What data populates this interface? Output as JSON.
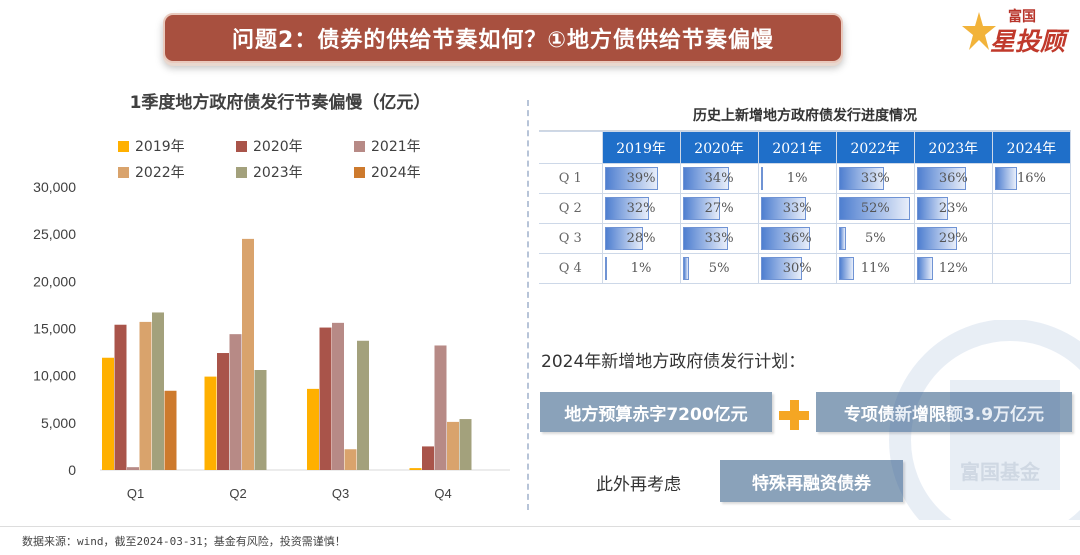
{
  "banner": {
    "title": "问题2：债券的供给节奏如何？①地方债供给节奏偏慢"
  },
  "logo": {
    "top": "富国",
    "main": "星投顾"
  },
  "chart_data": {
    "type": "bar",
    "title": "1季度地方政府债发行节奏偏慢（亿元）",
    "categories": [
      "Q1",
      "Q2",
      "Q3",
      "Q4"
    ],
    "ylim": [
      0,
      30000
    ],
    "yticks": [
      "30,000",
      "25,000",
      "20,000",
      "15,000",
      "10,000",
      "5,000",
      "0"
    ],
    "ytick_values": [
      30000,
      25000,
      20000,
      15000,
      10000,
      5000,
      0
    ],
    "legend_position": "top",
    "grid": false,
    "series": [
      {
        "name": "2019年",
        "color": "#ffb000",
        "values": [
          11900,
          9900,
          8600,
          200
        ]
      },
      {
        "name": "2020年",
        "color": "#a9544a",
        "values": [
          15400,
          12400,
          15100,
          2500
        ]
      },
      {
        "name": "2021年",
        "color": "#b78a86",
        "values": [
          300,
          14400,
          15600,
          13200
        ]
      },
      {
        "name": "2022年",
        "color": "#d9a36c",
        "values": [
          15700,
          24500,
          2200,
          5100
        ]
      },
      {
        "name": "2023年",
        "color": "#a3a17c",
        "values": [
          16700,
          10600,
          13700,
          5400
        ]
      },
      {
        "name": "2024年",
        "color": "#cd7a2d",
        "values": [
          8400,
          null,
          null,
          null
        ]
      }
    ]
  },
  "progress_table": {
    "title": "历史上新增地方政府债发行进度情况",
    "columns": [
      "2019年",
      "2020年",
      "2021年",
      "2022年",
      "2023年",
      "2024年"
    ],
    "rows": [
      {
        "label": "Q 1",
        "cells": [
          "39%",
          "34%",
          "1%",
          "33%",
          "36%",
          "16%"
        ],
        "values": [
          39,
          34,
          1,
          33,
          36,
          16
        ]
      },
      {
        "label": "Q 2",
        "cells": [
          "32%",
          "27%",
          "33%",
          "52%",
          "23%",
          ""
        ],
        "values": [
          32,
          27,
          33,
          52,
          23,
          null
        ]
      },
      {
        "label": "Q 3",
        "cells": [
          "28%",
          "33%",
          "36%",
          "5%",
          "29%",
          ""
        ],
        "values": [
          28,
          33,
          36,
          5,
          29,
          null
        ]
      },
      {
        "label": "Q 4",
        "cells": [
          "1%",
          "5%",
          "30%",
          "11%",
          "12%",
          ""
        ],
        "values": [
          1,
          5,
          30,
          11,
          12,
          null
        ]
      }
    ]
  },
  "plan": {
    "heading": "2024年新增地方政府债发行计划：",
    "box_deficit": "地方预算赤字7200亿元",
    "box_special": "专项债新增限额3.9万亿元",
    "also_label": "此外再考虑",
    "box_refinance": "特殊再融资债券"
  },
  "watermark": "富国基金",
  "footer": {
    "source": "数据来源：wind，截至2024-03-31；基金有风险，投资需谨慎！"
  },
  "colors": {
    "banner": "#a8503f",
    "table_header": "#1f6fc9",
    "box": "#8aa2ba",
    "plus": "#f5a623"
  }
}
